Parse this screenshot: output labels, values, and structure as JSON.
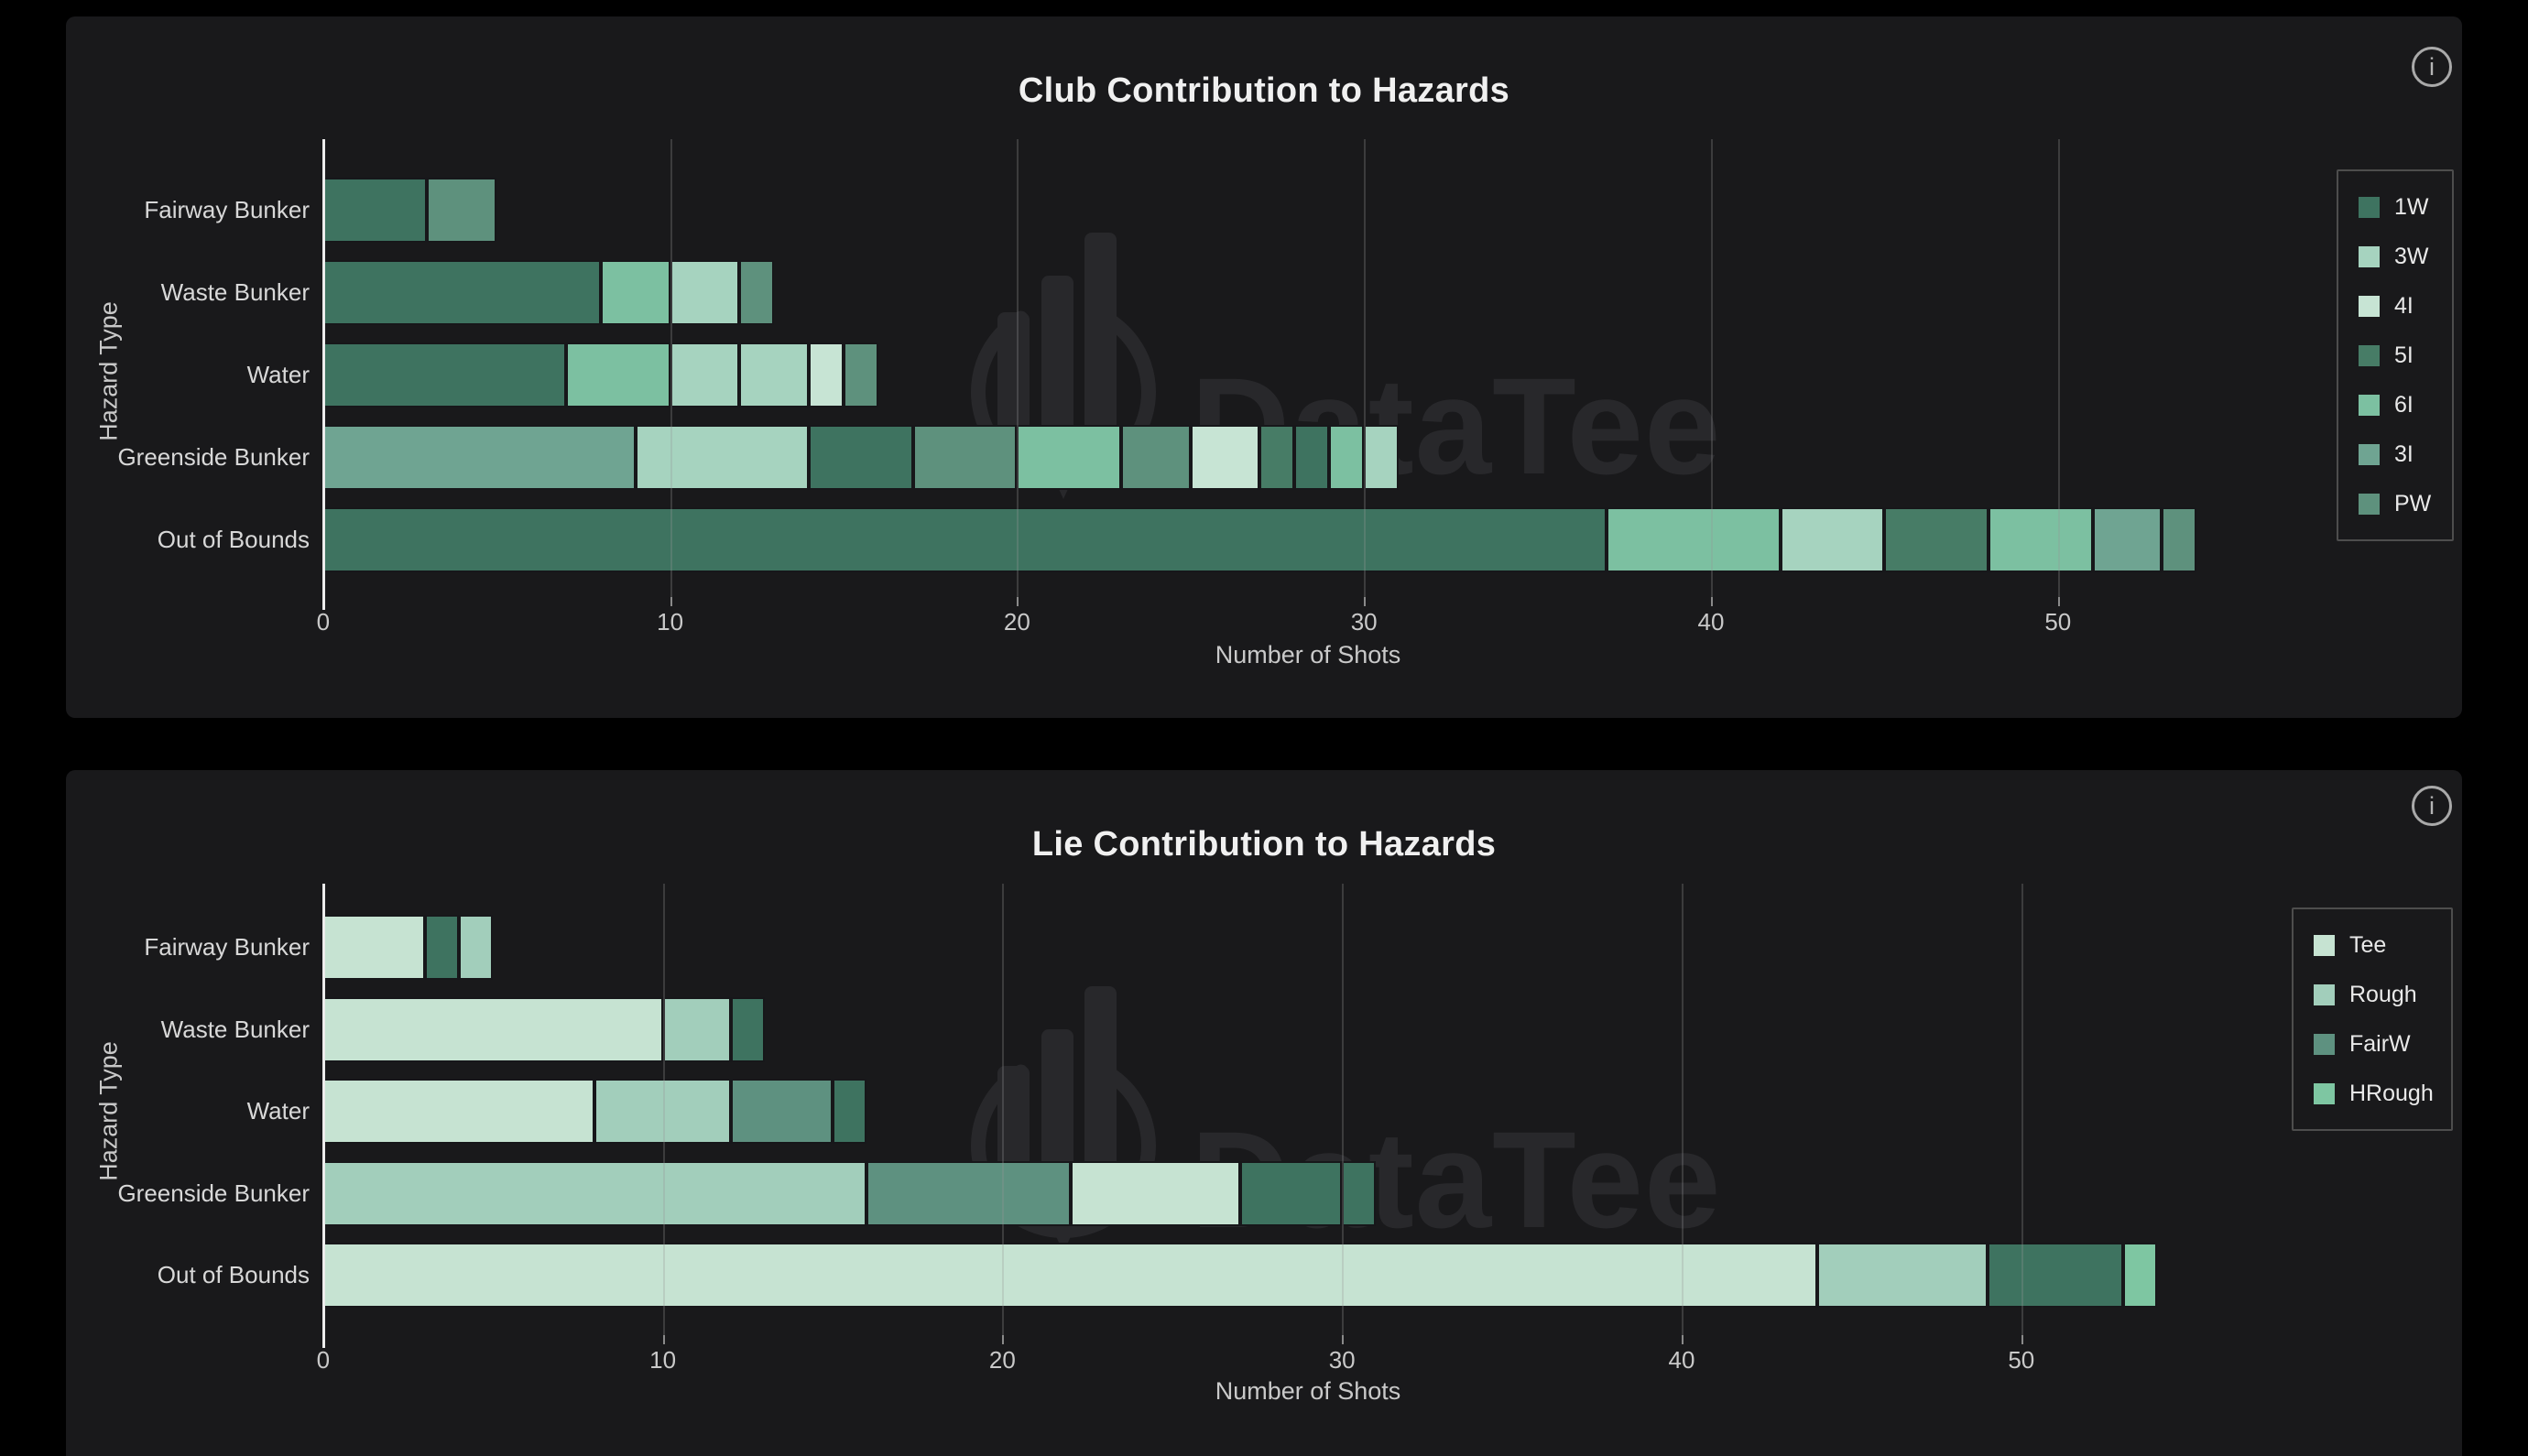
{
  "page": {
    "background": "#000000",
    "panel_background": "#19191b"
  },
  "watermark": {
    "text": "DataTee",
    "logo": "bar-chart-in-circle"
  },
  "info_icon": {
    "glyph": "i"
  },
  "chart_data": [
    {
      "type": "bar",
      "orientation": "horizontal_stacked",
      "title": "Club Contribution to Hazards",
      "xlabel": "Number of Shots",
      "ylabel": "Hazard Type",
      "xticks": [
        0,
        10,
        20,
        30,
        40,
        50
      ],
      "xlim": [
        0,
        55
      ],
      "grid": "vertical",
      "legend_position": "right",
      "categories": [
        "Fairway Bunker",
        "Waste Bunker",
        "Water",
        "Greenside Bunker",
        "Out of Bounds"
      ],
      "totals": [
        5,
        13,
        16,
        31,
        54
      ],
      "legend": [
        "1W",
        "3W",
        "4I",
        "5I",
        "6I",
        "3I",
        "PW"
      ],
      "palette": {
        "1W": "#3e7360",
        "3W": "#a6d3bf",
        "4I": "#c7e4d4",
        "5I": "#477c66",
        "6I": "#7cc0a1",
        "3I": "#6fa492",
        "PW": "#5e917d"
      },
      "bars": [
        [
          {
            "series": "1W",
            "value": 3
          },
          {
            "series": "PW",
            "value": 2
          }
        ],
        [
          {
            "series": "1W",
            "value": 8
          },
          {
            "series": "6I",
            "value": 2
          },
          {
            "series": "3W",
            "value": 2
          },
          {
            "series": "PW",
            "value": 1
          }
        ],
        [
          {
            "series": "1W",
            "value": 7
          },
          {
            "series": "6I",
            "value": 3
          },
          {
            "series": "3W",
            "value": 2
          },
          {
            "series": "3W",
            "value": 2
          },
          {
            "series": "4I",
            "value": 1
          },
          {
            "series": "PW",
            "value": 1
          }
        ],
        [
          {
            "series": "3I",
            "value": 9
          },
          {
            "series": "3W",
            "value": 5
          },
          {
            "series": "1W",
            "value": 3
          },
          {
            "series": "PW",
            "value": 3
          },
          {
            "series": "6I",
            "value": 3
          },
          {
            "series": "PW",
            "value": 2
          },
          {
            "series": "4I",
            "value": 2
          },
          {
            "series": "5I",
            "value": 1
          },
          {
            "series": "1W",
            "value": 1
          },
          {
            "series": "6I",
            "value": 1
          },
          {
            "series": "3W",
            "value": 1
          }
        ],
        [
          {
            "series": "1W",
            "value": 37
          },
          {
            "series": "6I",
            "value": 5
          },
          {
            "series": "3W",
            "value": 3
          },
          {
            "series": "5I",
            "value": 3
          },
          {
            "series": "6I",
            "value": 3
          },
          {
            "series": "3I",
            "value": 2
          },
          {
            "series": "PW",
            "value": 1
          }
        ]
      ]
    },
    {
      "type": "bar",
      "orientation": "horizontal_stacked",
      "title": "Lie Contribution to Hazards",
      "xlabel": "Number of Shots",
      "ylabel": "Hazard Type",
      "xticks": [
        0,
        10,
        20,
        30,
        40,
        50
      ],
      "xlim": [
        0,
        55
      ],
      "grid": "vertical",
      "legend_position": "right",
      "categories": [
        "Fairway Bunker",
        "Waste Bunker",
        "Water",
        "Greenside Bunker",
        "Out of Bounds"
      ],
      "totals": [
        5,
        13,
        16,
        31,
        54
      ],
      "legend": [
        "Tee",
        "Rough",
        "FairW",
        "HRough"
      ],
      "palette": {
        "Tee": "#c6e3d2",
        "Rough": "#a2cebb",
        "FairW": "#5e9180",
        "HRough": "#7ec6a2",
        "Dark": "#3e7360"
      },
      "bars": [
        [
          {
            "series": "Tee",
            "value": 3
          },
          {
            "series": "Dark",
            "value": 1
          },
          {
            "series": "Rough",
            "value": 1
          }
        ],
        [
          {
            "series": "Tee",
            "value": 10
          },
          {
            "series": "Rough",
            "value": 2
          },
          {
            "series": "Dark",
            "value": 1
          }
        ],
        [
          {
            "series": "Tee",
            "value": 8
          },
          {
            "series": "Rough",
            "value": 4
          },
          {
            "series": "FairW",
            "value": 3
          },
          {
            "series": "Dark",
            "value": 1
          }
        ],
        [
          {
            "series": "Rough",
            "value": 16
          },
          {
            "series": "FairW",
            "value": 6
          },
          {
            "series": "Tee",
            "value": 5
          },
          {
            "series": "Dark",
            "value": 3
          },
          {
            "series": "Dark",
            "value": 1
          }
        ],
        [
          {
            "series": "Tee",
            "value": 44
          },
          {
            "series": "Rough",
            "value": 5
          },
          {
            "series": "Dark",
            "value": 4
          },
          {
            "series": "HRough",
            "value": 1
          }
        ]
      ]
    }
  ]
}
